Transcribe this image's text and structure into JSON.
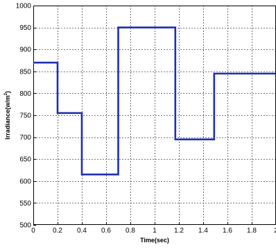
{
  "chart_data": {
    "type": "line",
    "title": "",
    "xlabel": "Time(sec)",
    "ylabel_base": "Irradiance(w/m",
    "ylabel_sup": "2",
    "ylabel_close": ")",
    "xlim": [
      0,
      2
    ],
    "ylim": [
      500,
      1000
    ],
    "x_ticks": [
      0,
      0.2,
      0.4,
      0.6,
      0.8,
      1,
      1.2,
      1.4,
      1.6,
      1.8,
      2
    ],
    "x_tick_labels": [
      "0",
      "0.2",
      "0.4",
      "0.6",
      "0.8",
      "1",
      "1.2",
      "1.4",
      "1.6",
      "1.8",
      "2"
    ],
    "y_ticks": [
      500,
      550,
      600,
      650,
      700,
      750,
      800,
      850,
      900,
      950,
      1000
    ],
    "y_tick_labels": [
      "500",
      "550",
      "600",
      "650",
      "700",
      "750",
      "800",
      "850",
      "900",
      "950",
      "1000"
    ],
    "grid": true,
    "line_style": "step",
    "series": [
      {
        "color": "#1f2fb0",
        "x": [
          0,
          0.2,
          0.2,
          0.4,
          0.4,
          0.7,
          0.7,
          1.17,
          1.17,
          1.49,
          1.49,
          2.0
        ],
        "y": [
          870,
          870,
          755,
          755,
          615,
          615,
          950,
          950,
          695,
          695,
          845,
          845
        ]
      }
    ]
  }
}
